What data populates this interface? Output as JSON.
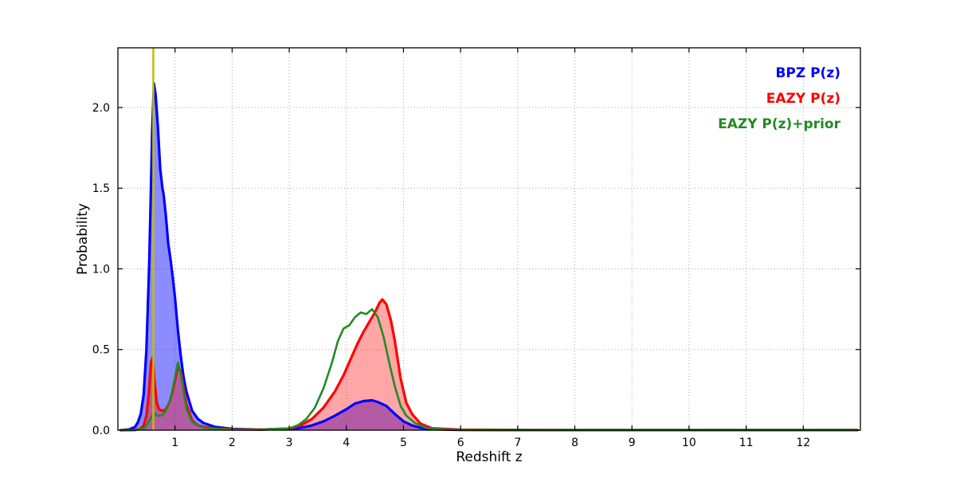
{
  "chart_data": {
    "type": "area",
    "title": "",
    "xlabel": "Redshift z",
    "ylabel": "Probability",
    "xlim": [
      0,
      13
    ],
    "ylim": [
      0,
      2.37
    ],
    "xticks": [
      1,
      2,
      3,
      4,
      5,
      6,
      7,
      8,
      9,
      10,
      11,
      12
    ],
    "yticks": [
      0,
      0.5,
      1.0,
      1.5,
      2.0
    ],
    "ytick_labels": [
      "0.0",
      "0.5",
      "1.0",
      "1.5",
      "2.0"
    ],
    "grid": "dotted",
    "grid_color": "#aaaaaa",
    "axis_color": "#000000",
    "background": "#ffffff",
    "legend_position": "upper-right",
    "vline": {
      "x": 0.62,
      "color": "#bfbf00"
    },
    "series": [
      {
        "name": "BPZ P(z)",
        "color": "#0000ff",
        "fill": true,
        "fill_opacity": 0.45,
        "line_width": 3.2,
        "x": [
          0.05,
          0.2,
          0.3,
          0.35,
          0.4,
          0.45,
          0.5,
          0.55,
          0.6,
          0.63,
          0.66,
          0.7,
          0.74,
          0.78,
          0.8,
          0.84,
          0.88,
          0.92,
          0.96,
          1.0,
          1.05,
          1.1,
          1.15,
          1.2,
          1.3,
          1.4,
          1.5,
          1.7,
          2.0,
          2.5,
          3.0,
          3.2,
          3.4,
          3.6,
          3.8,
          4.0,
          4.15,
          4.3,
          4.45,
          4.55,
          4.7,
          4.85,
          5.0,
          5.15,
          5.3,
          5.5,
          6.0,
          7.0,
          9.0,
          12.95
        ],
        "y": [
          0.0,
          0.005,
          0.02,
          0.05,
          0.1,
          0.22,
          0.5,
          1.05,
          1.85,
          2.15,
          2.08,
          1.88,
          1.62,
          1.5,
          1.46,
          1.33,
          1.16,
          1.06,
          0.95,
          0.82,
          0.62,
          0.46,
          0.33,
          0.24,
          0.12,
          0.07,
          0.045,
          0.02,
          0.008,
          0.004,
          0.008,
          0.015,
          0.03,
          0.055,
          0.09,
          0.13,
          0.165,
          0.18,
          0.185,
          0.175,
          0.15,
          0.1,
          0.055,
          0.03,
          0.015,
          0.006,
          0.002,
          0.001,
          0.001,
          0.001
        ]
      },
      {
        "name": "EAZY P(z)",
        "color": "#ff0000",
        "fill": true,
        "fill_opacity": 0.35,
        "line_width": 3.2,
        "x": [
          0.05,
          0.3,
          0.4,
          0.45,
          0.5,
          0.54,
          0.58,
          0.61,
          0.64,
          0.68,
          0.72,
          0.78,
          0.84,
          0.9,
          0.95,
          1.0,
          1.05,
          1.1,
          1.15,
          1.2,
          1.3,
          1.4,
          1.5,
          1.7,
          2.0,
          2.5,
          3.0,
          3.2,
          3.4,
          3.6,
          3.8,
          3.95,
          4.1,
          4.2,
          4.3,
          4.4,
          4.5,
          4.58,
          4.63,
          4.7,
          4.78,
          4.85,
          4.95,
          5.05,
          5.15,
          5.3,
          5.5,
          6.0,
          8.0,
          12.95
        ],
        "y": [
          0.0,
          0.001,
          0.01,
          0.03,
          0.09,
          0.22,
          0.42,
          0.45,
          0.3,
          0.17,
          0.13,
          0.12,
          0.13,
          0.17,
          0.23,
          0.31,
          0.4,
          0.36,
          0.26,
          0.16,
          0.06,
          0.03,
          0.02,
          0.01,
          0.005,
          0.004,
          0.01,
          0.03,
          0.07,
          0.14,
          0.24,
          0.34,
          0.46,
          0.54,
          0.61,
          0.67,
          0.73,
          0.79,
          0.81,
          0.78,
          0.68,
          0.55,
          0.32,
          0.17,
          0.1,
          0.04,
          0.012,
          0.003,
          0.001,
          0.001
        ]
      },
      {
        "name": "EAZY P(z)+prior",
        "color": "#228b22",
        "fill": false,
        "fill_opacity": 0,
        "line_width": 2.6,
        "x": [
          0.05,
          0.3,
          0.45,
          0.5,
          0.55,
          0.6,
          0.65,
          0.7,
          0.75,
          0.8,
          0.85,
          0.9,
          0.95,
          1.0,
          1.05,
          1.1,
          1.15,
          1.2,
          1.3,
          1.4,
          1.5,
          1.7,
          2.0,
          2.5,
          3.0,
          3.15,
          3.3,
          3.45,
          3.6,
          3.75,
          3.85,
          3.95,
          4.05,
          4.15,
          4.25,
          4.35,
          4.45,
          4.55,
          4.65,
          4.75,
          4.85,
          4.95,
          5.05,
          5.2,
          5.4,
          5.6,
          6.0,
          8.0,
          12.95
        ],
        "y": [
          0.0,
          0.001,
          0.01,
          0.03,
          0.06,
          0.09,
          0.1,
          0.09,
          0.09,
          0.1,
          0.13,
          0.17,
          0.24,
          0.33,
          0.42,
          0.35,
          0.24,
          0.13,
          0.05,
          0.03,
          0.015,
          0.008,
          0.005,
          0.004,
          0.012,
          0.03,
          0.07,
          0.14,
          0.26,
          0.42,
          0.55,
          0.63,
          0.65,
          0.7,
          0.73,
          0.72,
          0.75,
          0.7,
          0.58,
          0.42,
          0.27,
          0.15,
          0.09,
          0.045,
          0.015,
          0.006,
          0.002,
          0.001,
          0.001
        ]
      }
    ]
  }
}
